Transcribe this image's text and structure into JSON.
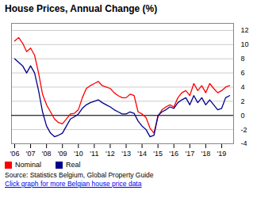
{
  "chart_data": {
    "type": "line",
    "title": "House Prices, Annual Change (%)",
    "annotations": [
      "Source: Statistics Belgium, Global Property Guide",
      "Click graph for more Belgian house price data"
    ],
    "x": [
      2006.0,
      2006.25,
      2006.5,
      2006.75,
      2007.0,
      2007.25,
      2007.5,
      2007.75,
      2008.0,
      2008.25,
      2008.5,
      2008.75,
      2009.0,
      2009.25,
      2009.5,
      2009.75,
      2010.0,
      2010.25,
      2010.5,
      2010.75,
      2011.0,
      2011.25,
      2011.5,
      2011.75,
      2012.0,
      2012.25,
      2012.5,
      2012.75,
      2013.0,
      2013.25,
      2013.5,
      2013.75,
      2014.0,
      2014.25,
      2014.5,
      2014.75,
      2015.0,
      2015.25,
      2015.5,
      2015.75,
      2016.0,
      2016.25,
      2016.5,
      2016.75,
      2017.0,
      2017.25,
      2017.5,
      2017.75,
      2018.0,
      2018.25,
      2018.5,
      2018.75,
      2019.0,
      2019.25,
      2019.5
    ],
    "series": [
      {
        "name": "Nominal",
        "color": "#ff0000",
        "values": [
          10.5,
          11.0,
          10.2,
          9.0,
          9.5,
          8.5,
          6.0,
          3.0,
          1.5,
          0.5,
          -0.5,
          -1.0,
          -1.2,
          -0.5,
          0.2,
          0.3,
          0.8,
          2.5,
          3.8,
          4.2,
          4.5,
          4.8,
          4.2,
          4.0,
          3.8,
          3.2,
          2.8,
          2.5,
          2.5,
          3.0,
          2.8,
          0.5,
          0.2,
          -0.3,
          -1.8,
          -2.5,
          -0.2,
          0.8,
          1.2,
          1.5,
          1.2,
          2.5,
          3.2,
          3.5,
          2.8,
          4.5,
          3.5,
          4.2,
          3.2,
          4.5,
          3.8,
          3.2,
          3.5,
          4.0,
          4.2
        ]
      },
      {
        "name": "Real",
        "color": "#00008b",
        "values": [
          8.0,
          7.5,
          7.0,
          6.0,
          7.0,
          6.0,
          3.5,
          0.5,
          -1.5,
          -2.5,
          -3.0,
          -2.8,
          -2.5,
          -1.5,
          -0.5,
          -0.2,
          0.2,
          1.0,
          1.5,
          1.8,
          2.0,
          2.2,
          1.8,
          1.5,
          1.2,
          0.8,
          0.5,
          0.2,
          0.2,
          0.5,
          0.3,
          -0.8,
          -1.5,
          -2.0,
          -3.0,
          -2.8,
          0.0,
          0.5,
          0.8,
          1.2,
          1.0,
          1.8,
          2.2,
          2.5,
          1.5,
          2.8,
          1.8,
          2.5,
          1.5,
          2.2,
          1.5,
          0.8,
          1.0,
          2.5,
          2.8
        ]
      }
    ],
    "xlim": [
      2005.8,
      2019.75
    ],
    "xticks": [
      {
        "value": 2006,
        "label": "'06"
      },
      {
        "value": 2007,
        "label": "'07"
      },
      {
        "value": 2008,
        "label": "'08"
      },
      {
        "value": 2009,
        "label": "'09"
      },
      {
        "value": 2010,
        "label": "'10"
      },
      {
        "value": 2011,
        "label": "'11"
      },
      {
        "value": 2012,
        "label": "'12"
      },
      {
        "value": 2013,
        "label": "'13"
      },
      {
        "value": 2014,
        "label": "'14"
      },
      {
        "value": 2015,
        "label": "'15"
      },
      {
        "value": 2016,
        "label": "'16"
      },
      {
        "value": 2017,
        "label": "'17"
      },
      {
        "value": 2018,
        "label": "'18"
      },
      {
        "value": 2019,
        "label": "'19"
      }
    ],
    "ylim": [
      -4,
      13
    ],
    "yticks": [
      -4,
      -2,
      0,
      2,
      4,
      6,
      8,
      10,
      12
    ],
    "grid": true,
    "legend": "bottom"
  }
}
